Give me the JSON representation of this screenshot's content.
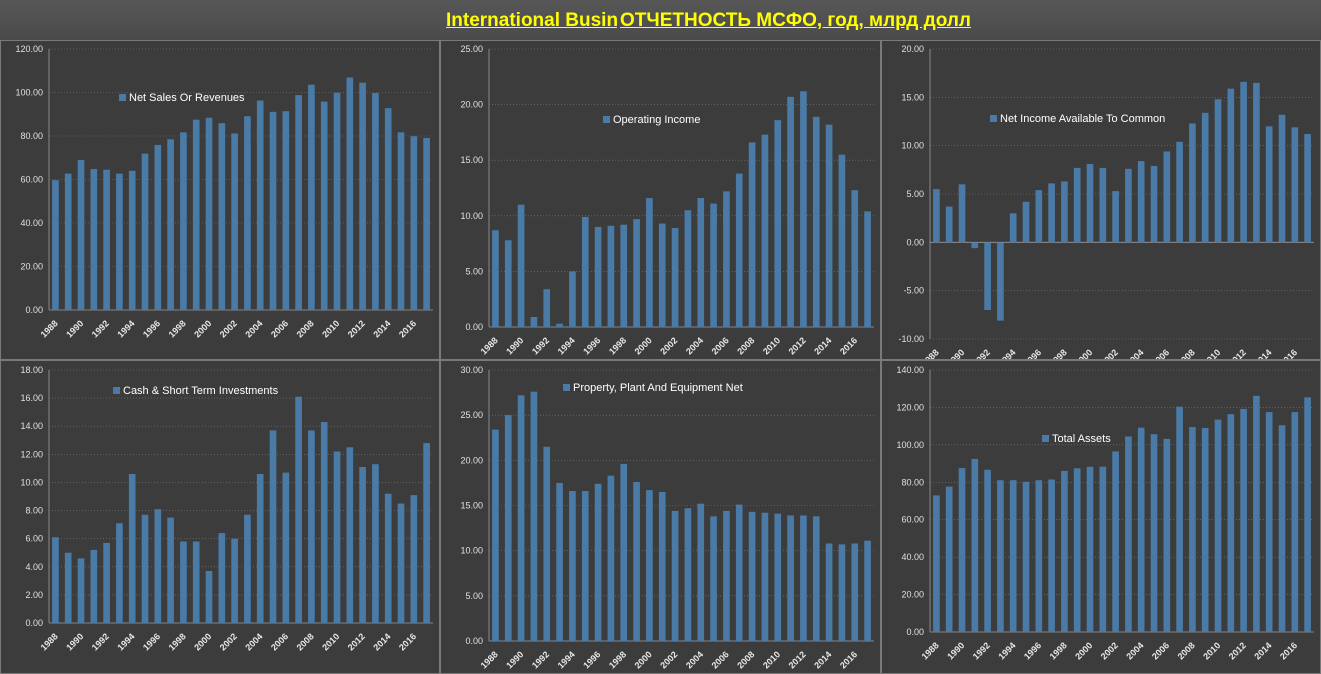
{
  "header": {
    "title_left": "International Business Machines",
    "title_right": "ОТЧЕТНОСТЬ МСФО, год, млрд долл"
  },
  "colors": {
    "bar": "#4a7aa6",
    "grid": "#7a7a7a",
    "axis": "#9a9a9a",
    "title": "#ffff00"
  },
  "x_years": [
    "1988",
    "1989",
    "1990",
    "1991",
    "1992",
    "1993",
    "1994",
    "1995",
    "1996",
    "1997",
    "1998",
    "1999",
    "2000",
    "2001",
    "2002",
    "2003",
    "2004",
    "2005",
    "2006",
    "2007",
    "2008",
    "2009",
    "2010",
    "2011",
    "2012",
    "2013",
    "2014",
    "2015",
    "2016",
    "2017"
  ],
  "chart_data": [
    {
      "type": "bar",
      "legend": "Net Sales Or Revenues",
      "ylim": [
        0,
        120
      ],
      "ytick_step": 20,
      "yticks": [
        "0.00",
        "20.00",
        "40.00",
        "60.00",
        "80.00",
        "100.00",
        "120.00"
      ],
      "values": [
        59.7,
        62.7,
        69.0,
        64.8,
        64.5,
        62.7,
        64.0,
        71.9,
        75.9,
        78.5,
        81.7,
        87.5,
        88.4,
        85.9,
        81.2,
        89.1,
        96.3,
        91.1,
        91.4,
        98.8,
        103.6,
        95.8,
        99.9,
        106.9,
        104.5,
        99.8,
        92.8,
        81.7,
        79.9,
        79.1
      ],
      "grid": true,
      "legend_position": "upper-left"
    },
    {
      "type": "bar",
      "legend": "Operating Income",
      "ylim": [
        0,
        25
      ],
      "ytick_step": 5,
      "yticks": [
        "0.00",
        "5.00",
        "10.00",
        "15.00",
        "20.00",
        "25.00"
      ],
      "values": [
        8.7,
        7.8,
        11.0,
        0.9,
        3.4,
        0.3,
        5.0,
        9.9,
        9.0,
        9.1,
        9.2,
        9.7,
        11.6,
        9.3,
        8.9,
        10.5,
        11.6,
        11.1,
        12.2,
        13.8,
        16.6,
        17.3,
        18.6,
        20.7,
        21.2,
        18.9,
        18.2,
        15.5,
        12.3,
        10.4
      ],
      "grid": true,
      "legend_position": "upper-center"
    },
    {
      "type": "bar",
      "legend": "Net Income Available To Common",
      "ylim": [
        -10,
        20
      ],
      "ytick_step": 5,
      "yticks": [
        "-10.00",
        "-5.00",
        "0.00",
        "5.00",
        "10.00",
        "15.00",
        "20.00"
      ],
      "values": [
        5.5,
        3.7,
        6.0,
        -0.6,
        -7.0,
        -8.1,
        3.0,
        4.2,
        5.4,
        6.1,
        6.3,
        7.7,
        8.1,
        7.7,
        5.3,
        7.6,
        8.4,
        7.9,
        9.4,
        10.4,
        12.3,
        13.4,
        14.8,
        15.9,
        16.6,
        16.5,
        12.0,
        13.2,
        11.9,
        11.2
      ],
      "grid": true,
      "legend_position": "upper-right"
    },
    {
      "type": "bar",
      "legend": "Cash & Short Term Investments",
      "ylim": [
        0,
        18
      ],
      "ytick_step": 2,
      "yticks": [
        "0.00",
        "2.00",
        "4.00",
        "6.00",
        "8.00",
        "10.00",
        "12.00",
        "14.00",
        "16.00",
        "18.00"
      ],
      "values": [
        6.1,
        5.0,
        4.6,
        5.2,
        5.7,
        7.1,
        10.6,
        7.7,
        8.1,
        7.5,
        5.8,
        5.8,
        3.7,
        6.4,
        6.0,
        7.7,
        10.6,
        13.7,
        10.7,
        16.1,
        13.7,
        14.3,
        12.2,
        12.5,
        11.1,
        11.3,
        9.2,
        8.5,
        9.1,
        12.8
      ],
      "grid": true,
      "legend_position": "upper-left"
    },
    {
      "type": "bar",
      "legend": "Property, Plant And Equipment Net",
      "ylim": [
        0,
        30
      ],
      "ytick_step": 5,
      "yticks": [
        "0.00",
        "5.00",
        "10.00",
        "15.00",
        "20.00",
        "25.00",
        "30.00"
      ],
      "values": [
        23.4,
        25.0,
        27.2,
        27.6,
        21.5,
        17.5,
        16.6,
        16.6,
        17.4,
        18.3,
        19.6,
        17.6,
        16.7,
        16.5,
        14.4,
        14.7,
        15.2,
        13.8,
        14.4,
        15.1,
        14.3,
        14.2,
        14.1,
        13.9,
        13.9,
        13.8,
        10.8,
        10.7,
        10.8,
        11.1
      ],
      "grid": true,
      "legend_position": "upper-left"
    },
    {
      "type": "bar",
      "legend": "Total Assets",
      "ylim": [
        0,
        140
      ],
      "ytick_step": 20,
      "yticks": [
        "0.00",
        "20.00",
        "40.00",
        "60.00",
        "80.00",
        "100.00",
        "120.00",
        "140.00"
      ],
      "values": [
        73.0,
        77.7,
        87.6,
        92.5,
        86.7,
        81.1,
        81.1,
        80.3,
        81.1,
        81.5,
        86.1,
        87.5,
        88.3,
        88.3,
        96.5,
        104.5,
        109.2,
        105.7,
        103.2,
        120.4,
        109.5,
        109.0,
        113.5,
        116.4,
        119.2,
        126.2,
        117.5,
        110.5,
        117.5,
        125.4
      ],
      "grid": true,
      "legend_position": "upper-left"
    }
  ]
}
